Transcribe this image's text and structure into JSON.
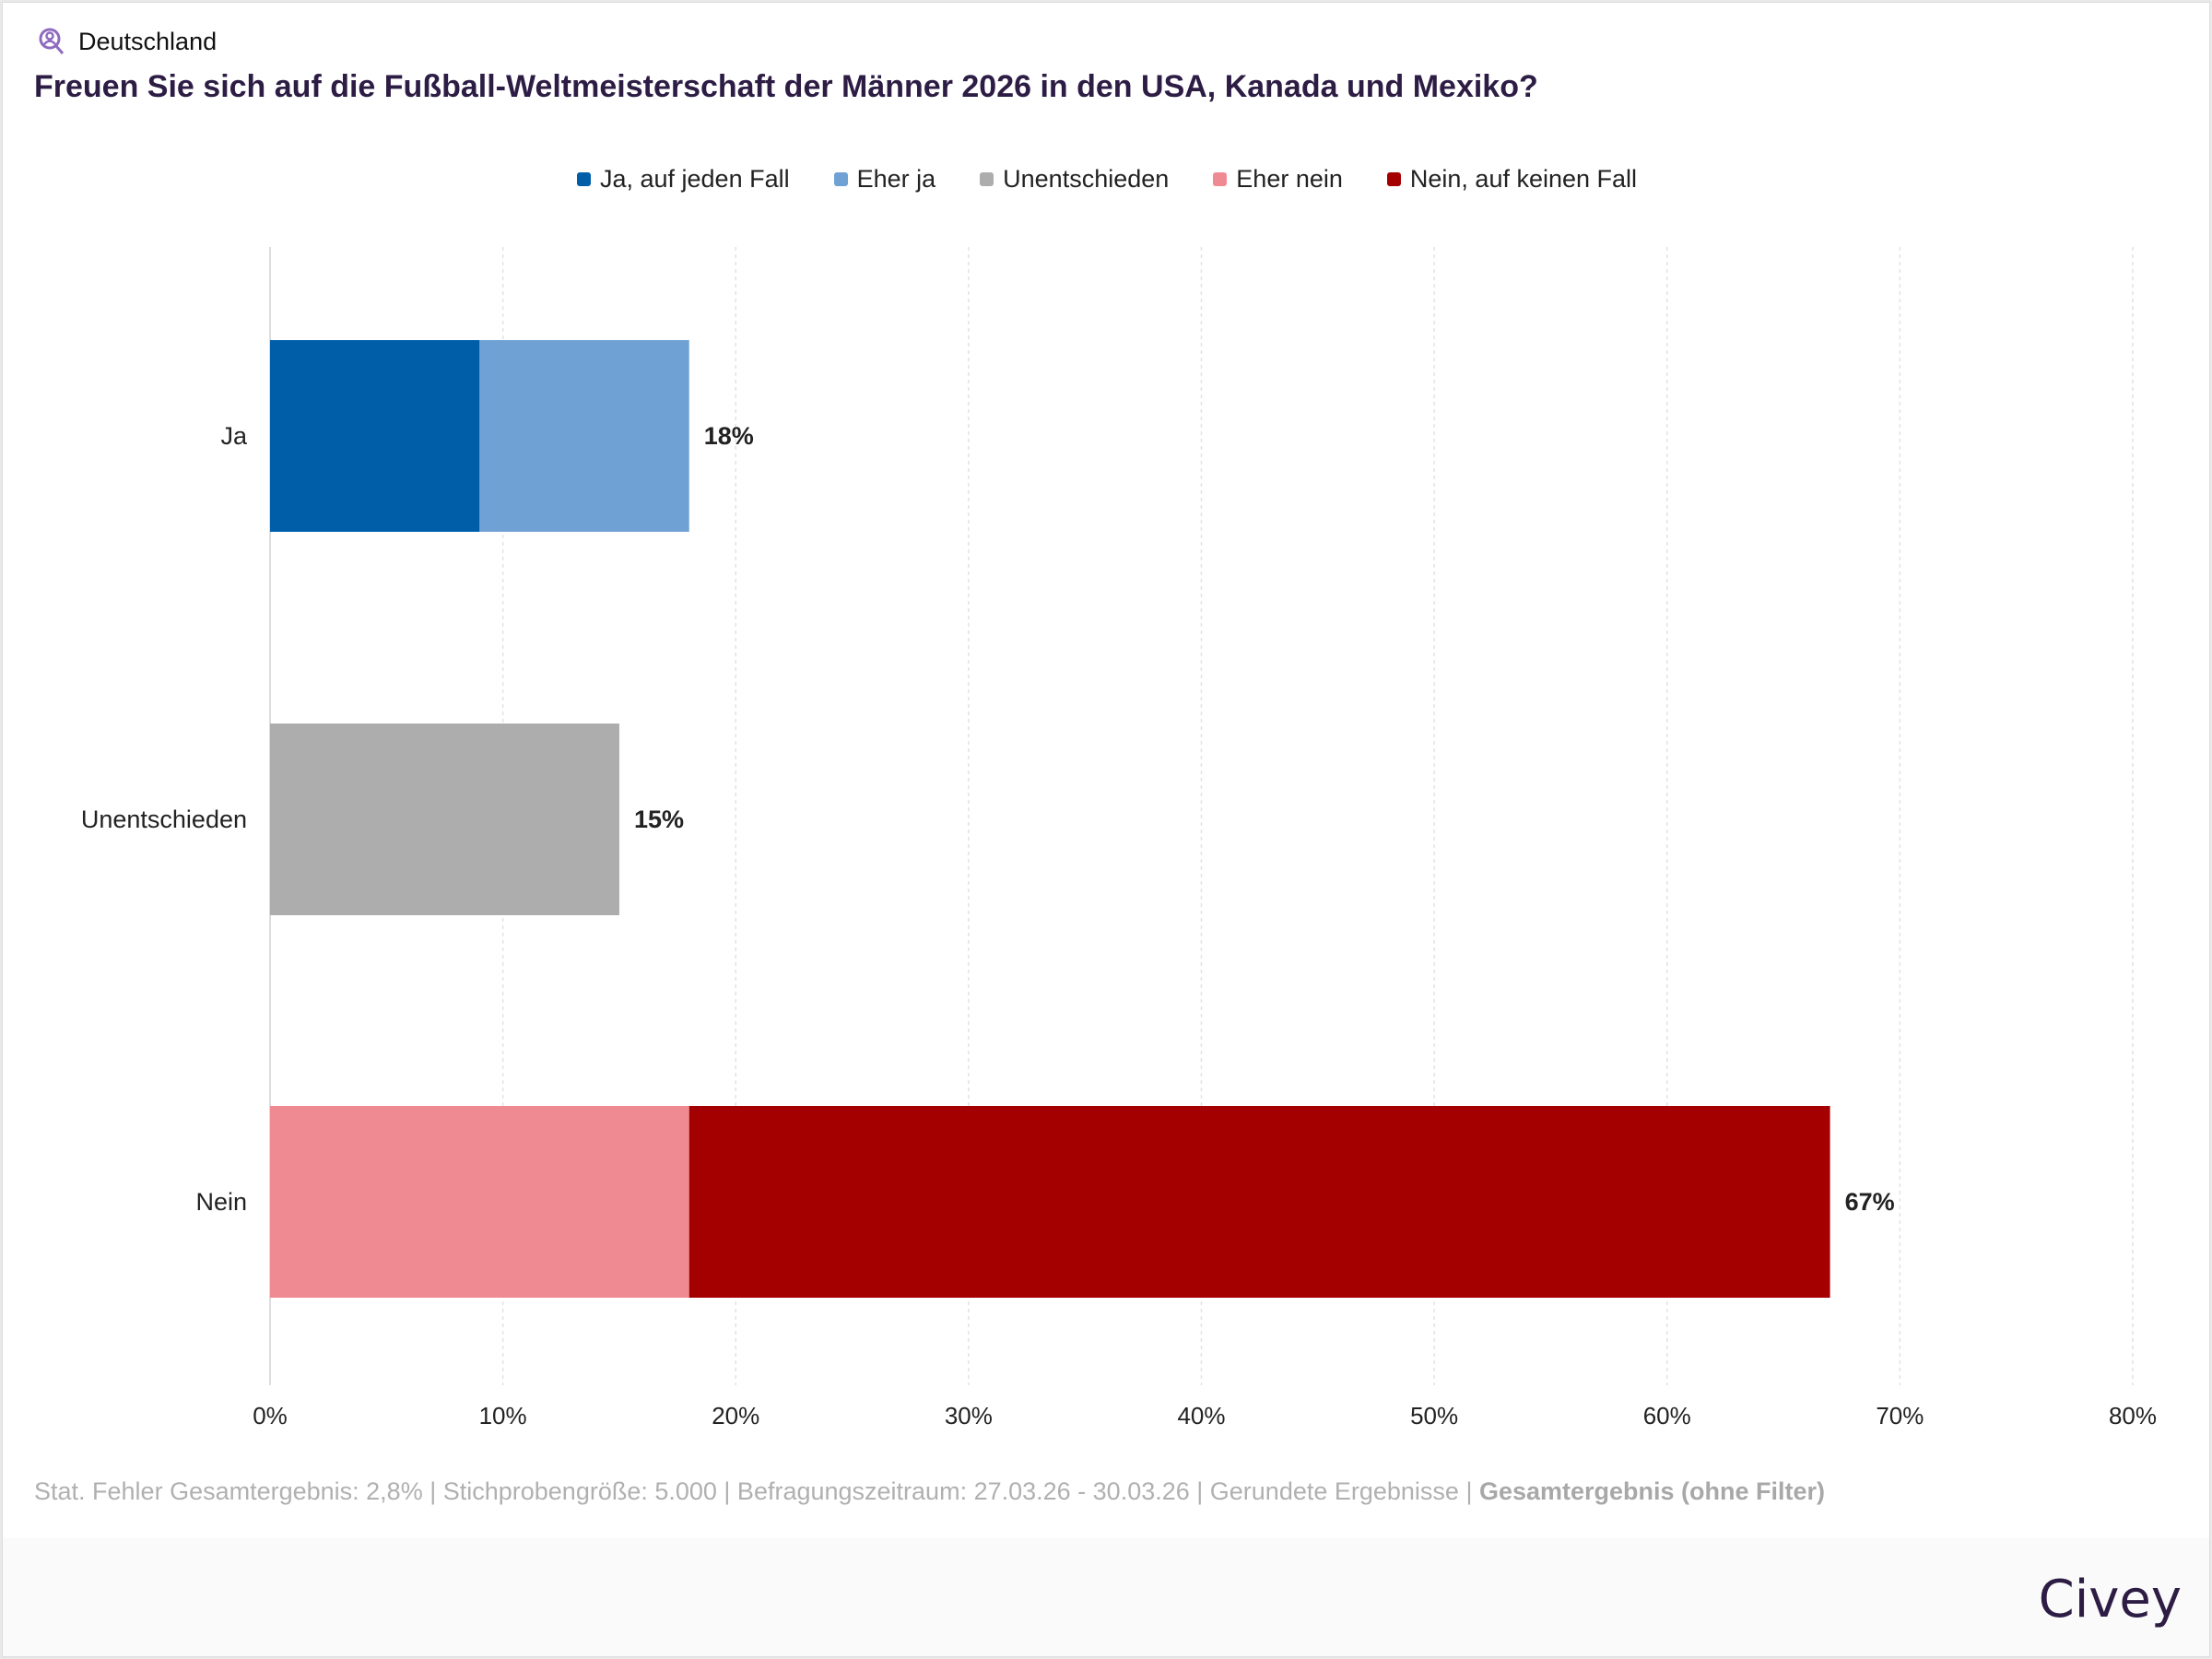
{
  "region": {
    "label": "Deutschland",
    "icon": "person-search-icon"
  },
  "colors": {
    "accent": "#2d1d45",
    "icon": "#8e6bbf"
  },
  "chart_data": {
    "type": "bar",
    "orientation": "horizontal",
    "stacked": true,
    "title": "Freuen Sie sich auf die Fußball-Weltmeisterschaft der Männer 2026 in den USA, Kanada und Mexiko?",
    "categories": [
      "Ja",
      "Unentschieden",
      "Nein"
    ],
    "series": [
      {
        "name": "Ja, auf jeden Fall",
        "color": "#005ea8",
        "values": [
          9,
          0,
          0
        ]
      },
      {
        "name": "Eher ja",
        "color": "#70a1d5",
        "values": [
          9,
          0,
          0
        ]
      },
      {
        "name": "Unentschieden",
        "color": "#adadad",
        "values": [
          0,
          15,
          0
        ]
      },
      {
        "name": "Eher nein",
        "color": "#f08a92",
        "values": [
          0,
          0,
          18
        ]
      },
      {
        "name": "Nein, auf keinen Fall",
        "color": "#a50000",
        "values": [
          0,
          0,
          49
        ]
      }
    ],
    "totals": [
      "18%",
      "15%",
      "67%"
    ],
    "xlim": [
      0,
      80
    ],
    "xticks": [
      "0%",
      "10%",
      "20%",
      "30%",
      "40%",
      "50%",
      "60%",
      "70%",
      "80%"
    ],
    "grid": true,
    "legend": "top-center"
  },
  "footer": {
    "text": "Stat. Fehler Gesamtergebnis: 2,8% | Stichprobengröße: 5.000 | Befragungszeitraum: 27.03.26 - 30.03.26 | Gerundete Ergebnisse | ",
    "bold": "Gesamtergebnis (ohne Filter)"
  },
  "logo": "Civey"
}
